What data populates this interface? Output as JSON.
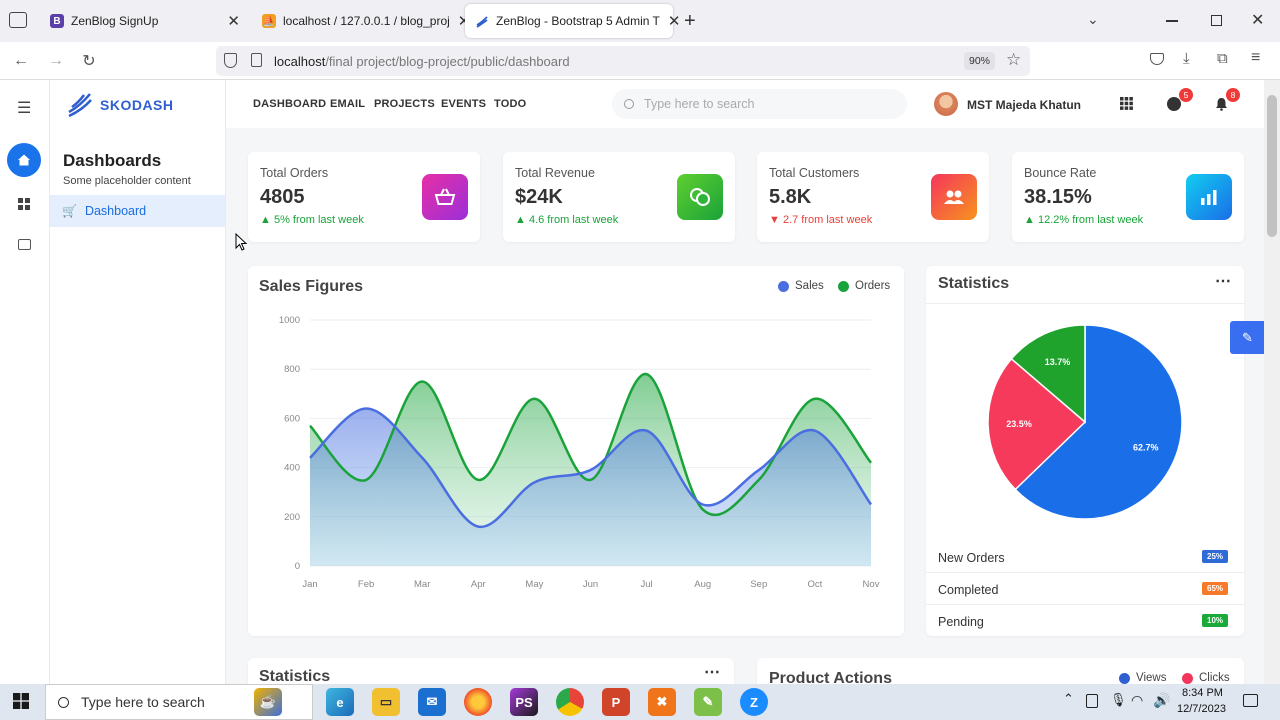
{
  "browser": {
    "tabs": [
      {
        "title": "ZenBlog SignUp"
      },
      {
        "title": "localhost / 127.0.0.1 / blog_proj"
      },
      {
        "title": "ZenBlog - Bootstrap 5 Admin T"
      }
    ],
    "url_host": "localhost",
    "url_path": "/final project/blog-project/public/dashboard",
    "zoom": "90%"
  },
  "app": {
    "brand": "SKODASH",
    "nav": [
      "DASHBOARD",
      "EMAIL",
      "PROJECTS",
      "EVENTS",
      "TODO"
    ],
    "search_placeholder": "Type here to search",
    "user_name": "MST Majeda Khatun",
    "messages_count": "5",
    "notifications_count": "8",
    "sidebar": {
      "title": "Dashboards",
      "subtitle": "Some placeholder content",
      "item": "Dashboard"
    },
    "stats": [
      {
        "title": "Total Orders",
        "value": "4805",
        "change": "5% from last week",
        "trend": "up",
        "color": "#e72fa6"
      },
      {
        "title": "Total Revenue",
        "value": "$24K",
        "change": "4.6 from last week",
        "trend": "up",
        "color": "#3fb93b"
      },
      {
        "title": "Total Customers",
        "value": "5.8K",
        "change": "2.7 from last week",
        "trend": "down",
        "color": "#f5365c"
      },
      {
        "title": "Bounce Rate",
        "value": "38.15%",
        "change": "12.2% from last week",
        "trend": "up",
        "color": "#1a8cf0"
      }
    ],
    "sales": {
      "title": "Sales Figures",
      "legend": [
        "Sales",
        "Orders"
      ]
    },
    "statistics": {
      "title": "Statistics",
      "rows": [
        {
          "label": "New Orders",
          "badge": "25%",
          "color": "#2f6bd7"
        },
        {
          "label": "Completed",
          "badge": "65%",
          "color": "#f77a2b"
        },
        {
          "label": "Pending",
          "badge": "10%",
          "color": "#1aaa3a"
        }
      ]
    },
    "bottom": {
      "left_title": "Statistics",
      "right_title": "Product Actions",
      "legend": [
        "Views",
        "Clicks"
      ]
    }
  },
  "chart_data": [
    {
      "type": "area",
      "title": "Sales Figures",
      "categories": [
        "Jan",
        "Feb",
        "Mar",
        "Apr",
        "May",
        "Jun",
        "Jul",
        "Aug",
        "Sep",
        "Oct",
        "Nov"
      ],
      "ylim": [
        0,
        1000
      ],
      "yticks": [
        0,
        200,
        400,
        600,
        800,
        1000
      ],
      "series": [
        {
          "name": "Sales",
          "color": "#4a6ee0",
          "values": [
            440,
            640,
            440,
            160,
            340,
            390,
            550,
            250,
            390,
            550,
            250
          ]
        },
        {
          "name": "Orders",
          "color": "#1aa33a",
          "values": [
            570,
            350,
            750,
            350,
            680,
            350,
            780,
            230,
            350,
            680,
            420
          ]
        }
      ]
    },
    {
      "type": "pie",
      "title": "Statistics",
      "slices": [
        {
          "label": "62.7%",
          "value": 62.7,
          "color": "#1a6ee8"
        },
        {
          "label": "23.5%",
          "value": 23.5,
          "color": "#f53a5c"
        },
        {
          "label": "13.7%",
          "value": 13.7,
          "color": "#1fa32c"
        }
      ]
    }
  ],
  "taskbar": {
    "search_placeholder": "Type here to search",
    "time": "8:34 PM",
    "date": "12/7/2023"
  }
}
